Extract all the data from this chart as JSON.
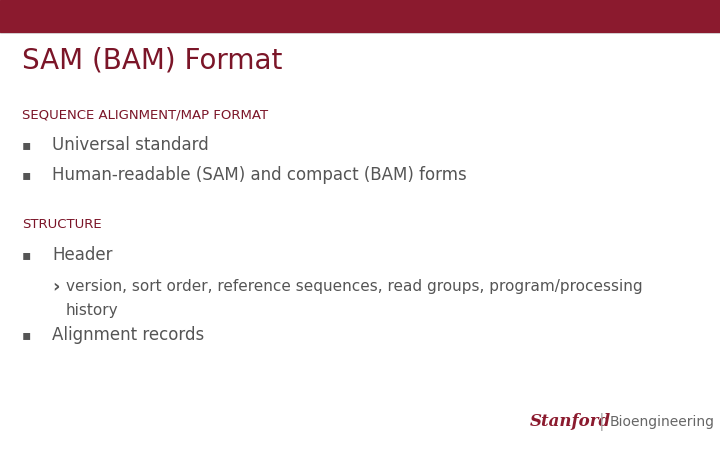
{
  "background_color": "#ffffff",
  "header_bar_color": "#8b1a2e",
  "title": "SAM (BAM) Format",
  "title_color": "#7b1528",
  "title_fontsize": 20,
  "bullet_color": "#555555",
  "section1_text": "SEQUENCE ALIGNMENT/MAP FORMAT",
  "section1_color": "#7b1528",
  "section1_fontsize": 9.5,
  "bullet1_text": "Universal standard",
  "bullet2_text": "Human-readable (SAM) and compact (BAM) forms",
  "section2_text": "STRUCTURE",
  "section2_color": "#7b1528",
  "section2_fontsize": 9.5,
  "bullet3_text": "Header",
  "sub_text1": "version, sort order, reference sequences, read groups, program/processing",
  "sub_text2": "history",
  "bullet4_text": "Alignment records",
  "body_fontsize": 12,
  "sub_fontsize": 11,
  "stanford_red": "#8b1a2e",
  "stanford_gray": "#666666",
  "stanford_fontsize": 12,
  "bio_fontsize": 10
}
